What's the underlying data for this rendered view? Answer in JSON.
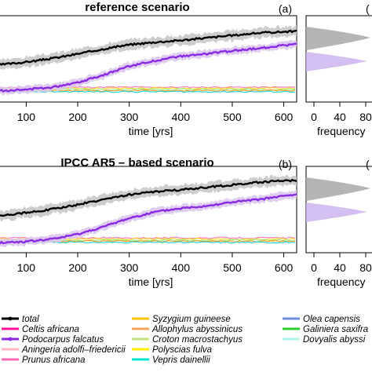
{
  "chart_data": [
    {
      "type": "line",
      "panel_letter": "(a)",
      "title": "reference scenario",
      "xlabel": "time [yrs]",
      "xticks": [
        100,
        200,
        300,
        400,
        500,
        600
      ],
      "xlim": [
        40,
        625
      ],
      "series": [
        {
          "name": "total",
          "color": "#000000",
          "band_color": "#c8c8c8",
          "x": [
            40,
            80,
            120,
            160,
            200,
            250,
            300,
            350,
            400,
            450,
            500,
            550,
            600,
            625
          ],
          "mean": [
            100,
            101.5,
            103.5,
            106,
            109,
            113,
            116.5,
            118.5,
            120,
            122,
            124,
            126,
            127,
            127.5
          ],
          "band": 4
        },
        {
          "name": "Podocarpus falcatus",
          "color": "#8a2be2",
          "band_color": "#dcc8f0",
          "x": [
            40,
            100,
            150,
            200,
            250,
            300,
            350,
            400,
            450,
            500,
            550,
            600,
            625
          ],
          "mean": [
            79,
            80,
            82,
            86,
            92,
            99,
            103.5,
            107,
            109,
            111.5,
            113.5,
            116,
            117
          ],
          "band": 3
        }
      ],
      "flat_series": {
        "colors": [
          "#ff69b4",
          "#ffd700",
          "#90ee90",
          "#ff8c00",
          "#00ced1"
        ],
        "mean": 82
      },
      "side_panel": {
        "letter": "(",
        "xlabel": "frequency",
        "xticks": [
          0,
          40,
          80
        ]
      }
    },
    {
      "type": "line",
      "panel_letter": "(b)",
      "title": "IPCC AR5 – based scenario",
      "xlabel": "time [yrs]",
      "xticks": [
        100,
        200,
        300,
        400,
        500,
        600
      ],
      "xlim": [
        40,
        625
      ],
      "series": [
        {
          "name": "total",
          "color": "#000000",
          "band_color": "#c8c8c8",
          "x": [
            40,
            80,
            120,
            160,
            200,
            250,
            300,
            350,
            400,
            450,
            500,
            550,
            600,
            625
          ],
          "mean": [
            100,
            101.5,
            103.5,
            106,
            109,
            113,
            117,
            119.5,
            121,
            123,
            125,
            127,
            128.5,
            128.5
          ],
          "band": 4
        },
        {
          "name": "Podocarpus falcatus",
          "color": "#8a2be2",
          "band_color": "#dcc8f0",
          "x": [
            40,
            100,
            150,
            200,
            250,
            300,
            350,
            400,
            450,
            500,
            550,
            600,
            625
          ],
          "mean": [
            78,
            79,
            81,
            85,
            91,
            98,
            103,
            106,
            108,
            111,
            113,
            116,
            117
          ],
          "band": 3
        }
      ],
      "flat_series": {
        "colors": [
          "#ff69b4",
          "#ffd700",
          "#90ee90",
          "#ff8c00",
          "#00ced1"
        ],
        "mean": 82
      },
      "side_panel": {
        "letter": "(",
        "xlabel": "frequency",
        "xticks": [
          0,
          40,
          80
        ]
      }
    }
  ],
  "legend": [
    {
      "name": "total",
      "color": "#000000",
      "style": "line-dot"
    },
    {
      "name": "Celtis africana",
      "color": "#ff1493"
    },
    {
      "name": "Podocarpus falcatus",
      "color": "#8a2be2",
      "style": "line-dot"
    },
    {
      "name": "Aningeria adolfi–friedericii",
      "color": "#ffb6c1"
    },
    {
      "name": "Prunus africana",
      "color": "#ff69b4"
    },
    {
      "name": "Syzygium guineese",
      "color": "#ffc000"
    },
    {
      "name": "Allophylus abyssinicus",
      "color": "#f4a460"
    },
    {
      "name": "Croton macrostachyus",
      "color": "#c5e384"
    },
    {
      "name": "Polyscias fulva",
      "color": "#ffef00"
    },
    {
      "name": "Vepris dainellii",
      "color": "#00e5d0"
    },
    {
      "name": "Olea capensis",
      "color": "#6f8fe6"
    },
    {
      "name": "Galiniera saxifra",
      "color": "#33cc33"
    },
    {
      "name": "Dovyalis abyssi",
      "color": "#b0f0e8"
    }
  ]
}
